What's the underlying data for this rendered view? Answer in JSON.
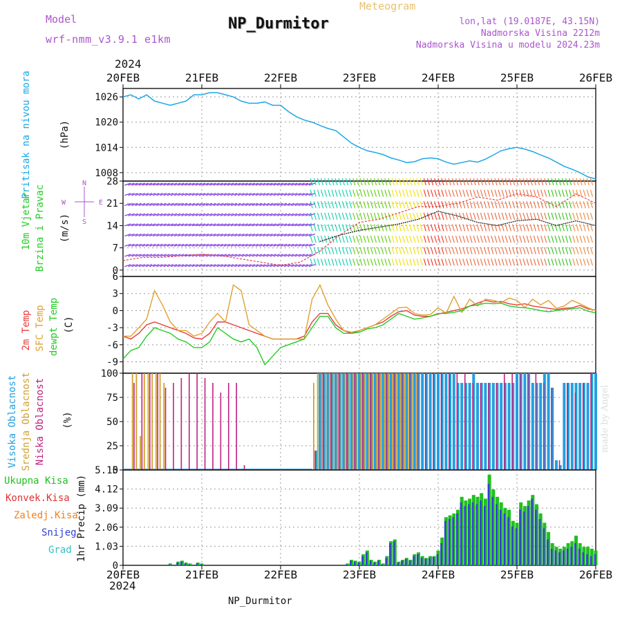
{
  "header": {
    "model_label": "Model",
    "model_name": "wrf-nmm_v3.9.1 e1km",
    "meteogram": "Meteogram",
    "title": "NP_Durmitor",
    "coords": "lon,lat (19.0187E, 43.15N)",
    "elevation": "Nadmorska Visina 2212m",
    "elevation_model": "Nadmorska Visina u modelu 2024.23m",
    "footer": "NP_Durmitor",
    "watermark": "made by Angel",
    "year_top": "2024",
    "year_bottom": "2024"
  },
  "colors": {
    "pressure": "#1aa7e6",
    "temp2m": "#e83a3a",
    "sfc": "#e0a030",
    "dew": "#22cc22",
    "high_cloud": "#22a0e0",
    "mid_cloud": "#d0a030",
    "low_cloud": "#c02080",
    "precip_total": "#20c020",
    "precip_conv": "#e03030",
    "precip_frz": "#f08020",
    "snow": "#3040d0",
    "graupel": "#30c0c0",
    "model_text": "#aa55cc"
  },
  "chart_data": [
    {
      "type": "line",
      "id": "pressure",
      "ylabel_main": "Pritisak na nivou mora",
      "ylabel_unit": "(hPa)",
      "x_ticks": [
        "20FEB",
        "21FEB",
        "22FEB",
        "23FEB",
        "24FEB",
        "25FEB",
        "26FEB"
      ],
      "yticks": [
        1008,
        1014,
        1020,
        1026
      ],
      "ylim": [
        1006,
        1028
      ],
      "x_days": [
        0,
        0.1,
        0.2,
        0.3,
        0.4,
        0.5,
        0.6,
        0.7,
        0.8,
        0.9,
        1,
        1.1,
        1.2,
        1.3,
        1.4,
        1.5,
        1.6,
        1.7,
        1.8,
        1.9,
        2,
        2.1,
        2.2,
        2.3,
        2.4,
        2.5,
        2.6,
        2.7,
        2.8,
        2.9,
        3,
        3.1,
        3.2,
        3.3,
        3.4,
        3.5,
        3.6,
        3.7,
        3.8,
        3.9,
        4,
        4.1,
        4.2,
        4.3,
        4.4,
        4.5,
        4.6,
        4.7,
        4.8,
        4.9,
        5,
        5.1,
        5.2,
        5.3,
        5.4,
        5.5,
        5.6,
        5.7,
        5.8,
        5.9,
        6
      ],
      "values": [
        1026,
        1026.5,
        1025.5,
        1026.5,
        1025,
        1024.5,
        1024,
        1024.5,
        1025,
        1026.5,
        1026.5,
        1027,
        1027,
        1026.5,
        1026,
        1025,
        1024.5,
        1024.5,
        1024.8,
        1024,
        1024,
        1022.5,
        1021.3,
        1020.5,
        1020,
        1019.2,
        1018.5,
        1018,
        1016.5,
        1015,
        1014,
        1013.2,
        1012.8,
        1012.3,
        1011.5,
        1011,
        1010.4,
        1010.6,
        1011.3,
        1011.5,
        1011.3,
        1010.5,
        1010,
        1010.4,
        1010.8,
        1010.5,
        1011.2,
        1012.2,
        1013.2,
        1013.7,
        1014,
        1013.6,
        1013,
        1012.2,
        1011.5,
        1010.5,
        1009.5,
        1008.8,
        1008,
        1007,
        1006.5
      ],
      "series_name": "Pritisak na nivou mora"
    },
    {
      "type": "barbs",
      "id": "wind",
      "ylabel_main": "10m Vjetar",
      "ylabel_sub": "Brzina i Pravac",
      "ylabel_unit": "(m/s)",
      "compass": [
        "N",
        "E",
        "W",
        "S"
      ],
      "yticks": [
        0,
        7,
        14,
        21,
        28
      ],
      "ylim": [
        -2,
        28
      ],
      "x_days": [
        0,
        0.25,
        0.5,
        0.75,
        1,
        1.25,
        1.5,
        1.75,
        2,
        2.25,
        2.5,
        2.75,
        3,
        3.25,
        3.5,
        3.75,
        4,
        4.25,
        4.5,
        4.75,
        5,
        5.25,
        5.5,
        5.75,
        6
      ],
      "speed_black": [
        null,
        null,
        null,
        null,
        null,
        null,
        null,
        null,
        null,
        null,
        9,
        11,
        12.5,
        13.5,
        14.5,
        16,
        18.5,
        17,
        15,
        14,
        15.5,
        16,
        14,
        15.5,
        14
      ],
      "speed_red": [
        3,
        4,
        4,
        4.5,
        5,
        4.5,
        3.5,
        2.5,
        1.5,
        2.5,
        6,
        11,
        15,
        16,
        18,
        20,
        20,
        21,
        23,
        22,
        24,
        23,
        20,
        24,
        21
      ]
    },
    {
      "type": "line",
      "id": "temperature",
      "ylabel_lines": [
        "2m Temp",
        "SFC Temp",
        "dewpt Temp"
      ],
      "ylabel_unit": "(C)",
      "yticks": [
        -9,
        -6,
        -3,
        0,
        3,
        6
      ],
      "ylim": [
        -11,
        6
      ],
      "x_days": [
        0,
        0.1,
        0.2,
        0.3,
        0.4,
        0.5,
        0.6,
        0.7,
        0.8,
        0.9,
        1,
        1.1,
        1.2,
        1.3,
        1.4,
        1.5,
        1.6,
        1.7,
        1.8,
        1.9,
        2,
        2.1,
        2.2,
        2.3,
        2.4,
        2.5,
        2.6,
        2.7,
        2.8,
        2.9,
        3,
        3.1,
        3.2,
        3.3,
        3.4,
        3.5,
        3.6,
        3.7,
        3.8,
        3.9,
        4,
        4.1,
        4.2,
        4.3,
        4.4,
        4.5,
        4.6,
        4.7,
        4.8,
        4.9,
        5,
        5.1,
        5.2,
        5.3,
        5.4,
        5.5,
        5.6,
        5.7,
        5.8,
        5.9,
        6
      ],
      "series": [
        {
          "name": "2m Temp",
          "values": [
            -4.5,
            -5,
            -4,
            -2.5,
            -2,
            -2.5,
            -3,
            -3.5,
            -4,
            -4.8,
            -5,
            -4,
            -2,
            -2,
            -2.5,
            -3,
            -3.5,
            -4,
            -4.5,
            -5,
            -5,
            -5,
            -5,
            -4.5,
            -2,
            -0.5,
            -0.5,
            -2.5,
            -3.5,
            -4,
            -3.5,
            -3,
            -2.5,
            -2,
            -1,
            -0.2,
            0,
            -0.8,
            -1,
            -1,
            -0.6,
            -0.3,
            0,
            0.3,
            0.8,
            1.3,
            1.8,
            1.5,
            1.6,
            1.2,
            1,
            1.2,
            0.8,
            0.6,
            0.4,
            0.2,
            0.4,
            0.5,
            0.9,
            0.3,
            0.1
          ]
        },
        {
          "name": "SFC Temp",
          "values": [
            -4.5,
            -4.5,
            -3,
            -1.5,
            3.5,
            1,
            -2,
            -3.5,
            -3.5,
            -4.5,
            -4,
            -2,
            -0.5,
            -2,
            4.5,
            3.5,
            -2.5,
            -3.5,
            -4.5,
            -5,
            -5,
            -5,
            -5,
            -5,
            2,
            4.5,
            1,
            -1.5,
            -3.5,
            -3.8,
            -3.5,
            -3,
            -2.5,
            -1.5,
            -0.5,
            0.5,
            0.6,
            -0.5,
            -0.8,
            -0.7,
            0.5,
            -0.5,
            2.5,
            -0.3,
            2,
            0.8,
            2,
            1.8,
            1.4,
            2.2,
            1.8,
            0.5,
            2,
            1,
            1.8,
            0.4,
            0.8,
            1.8,
            1.2,
            0.5,
            0
          ]
        },
        {
          "name": "dewpt Temp",
          "values": [
            -8.5,
            -7,
            -6.5,
            -4.5,
            -3,
            -3.5,
            -4,
            -5,
            -5.5,
            -6.5,
            -6.5,
            -5.5,
            -3,
            -4,
            -5,
            -5.5,
            -5,
            -6.5,
            -9.5,
            -8,
            -6.5,
            -6,
            -5.5,
            -5,
            -3,
            -1,
            -1,
            -3,
            -4,
            -4,
            -3.8,
            -3.2,
            -3,
            -2.5,
            -1.5,
            -0.5,
            -1,
            -1.5,
            -1.3,
            -1,
            -0.5,
            -0.5,
            -0.3,
            0,
            0.8,
            1,
            1.3,
            1.2,
            1.3,
            0.8,
            0.6,
            0.5,
            0.3,
            0,
            -0.2,
            0,
            0.2,
            0.3,
            0.5,
            -0.1,
            -0.4
          ]
        }
      ]
    },
    {
      "type": "bar",
      "id": "clouds",
      "ylabel_lines": [
        "Visoka Oblacnost",
        "Srednja Oblacnost",
        "Niska Oblacnost"
      ],
      "ylabel_unit": "(%)",
      "yticks": [
        0,
        25,
        50,
        75,
        100
      ],
      "ylim": [
        0,
        100
      ],
      "series": [
        {
          "name": "Visoka Oblacnost",
          "x_days": [
            2.45,
            2.5,
            2.55,
            2.6,
            2.65,
            2.7,
            2.75,
            2.8,
            2.85,
            2.9,
            2.95,
            3,
            3.05,
            3.1,
            3.15,
            3.2,
            3.25,
            3.3,
            3.35,
            3.4,
            3.45,
            3.5,
            3.55,
            3.6,
            3.65,
            3.7,
            3.75,
            3.8,
            3.85,
            3.9,
            3.95,
            4,
            4.05,
            4.1,
            4.15,
            4.2,
            4.25,
            4.3,
            4.35,
            4.4,
            4.45,
            4.5,
            4.55,
            4.6,
            4.65,
            4.7,
            4.75,
            4.8,
            4.85,
            4.9,
            4.95,
            5,
            5.05,
            5.1,
            5.15,
            5.2,
            5.25,
            5.3,
            5.35,
            5.4,
            5.45,
            5.5,
            5.55,
            5.6,
            5.65,
            5.7,
            5.75,
            5.8,
            5.85,
            5.9,
            5.95,
            6
          ],
          "values": [
            20,
            100,
            100,
            100,
            100,
            100,
            100,
            100,
            100,
            100,
            100,
            100,
            100,
            100,
            100,
            100,
            100,
            100,
            100,
            100,
            100,
            100,
            100,
            100,
            100,
            100,
            100,
            100,
            100,
            100,
            100,
            100,
            100,
            100,
            100,
            100,
            90,
            90,
            90,
            90,
            100,
            90,
            90,
            90,
            90,
            90,
            90,
            90,
            90,
            90,
            90,
            100,
            100,
            100,
            100,
            90,
            90,
            90,
            100,
            100,
            85,
            10,
            5,
            90,
            90,
            90,
            90,
            90,
            90,
            90,
            100,
            100
          ]
        },
        {
          "name": "Srednja Oblacnost",
          "x_days": [
            0.12,
            0.17,
            0.22,
            0.27,
            0.32,
            0.37,
            0.42,
            0.47,
            0.52,
            2.42,
            2.47,
            2.52,
            2.57,
            2.62,
            2.67,
            2.72,
            2.77,
            2.82,
            2.87,
            2.92,
            2.97,
            3.02,
            3.07,
            3.12,
            3.17,
            3.22,
            3.27,
            3.32,
            3.37,
            3.42,
            3.47,
            3.52,
            3.57,
            3.62,
            3.67,
            3.72
          ],
          "values": [
            100,
            100,
            35,
            100,
            100,
            100,
            100,
            100,
            90,
            90,
            100,
            100,
            100,
            100,
            100,
            100,
            100,
            100,
            100,
            100,
            100,
            100,
            100,
            100,
            100,
            100,
            100,
            100,
            100,
            100,
            100,
            100,
            100,
            100,
            100,
            100
          ]
        },
        {
          "name": "Niska Oblacnost",
          "x_days": [
            0.14,
            0.24,
            0.34,
            0.44,
            0.54,
            0.64,
            0.74,
            0.84,
            0.94,
            1.04,
            1.14,
            1.24,
            1.34,
            1.44,
            1.54,
            1.64,
            2.44,
            2.54,
            2.64,
            2.74,
            2.84,
            2.94,
            3.04,
            3.14,
            3.24,
            3.34,
            3.44,
            3.54,
            3.64,
            3.74,
            3.84,
            3.94,
            4.04,
            4.14,
            4.24,
            4.34,
            4.44,
            4.54,
            4.64,
            4.74,
            4.84,
            4.94,
            5.04,
            5.14,
            5.24,
            5.34,
            5.44,
            5.54,
            5.64,
            5.74,
            5.84,
            5.94
          ],
          "values": [
            90,
            100,
            100,
            100,
            85,
            90,
            95,
            100,
            100,
            95,
            90,
            80,
            90,
            90,
            5,
            0,
            20,
            100,
            100,
            100,
            100,
            100,
            100,
            100,
            100,
            100,
            100,
            100,
            100,
            100,
            100,
            100,
            100,
            100,
            100,
            100,
            90,
            90,
            90,
            90,
            100,
            100,
            100,
            100,
            100,
            90,
            85,
            10,
            90,
            80,
            90,
            100
          ]
        }
      ]
    },
    {
      "type": "bar",
      "id": "precip",
      "ylabel_lines": [
        "Ukupna Kisa",
        "Konvek.Kisa",
        "Zaledj.Kisa",
        "Snijeg",
        "Grad"
      ],
      "ylabel_unit": "1hr Precip (mm)",
      "yticks": [
        0,
        1.03,
        2.06,
        3.09,
        4.12,
        5.15
      ],
      "ylim": [
        0,
        5.15
      ],
      "x_days": [
        0.6,
        0.7,
        0.75,
        0.8,
        0.85,
        0.95,
        1.0,
        2.85,
        2.9,
        2.95,
        3.0,
        3.05,
        3.1,
        3.15,
        3.2,
        3.25,
        3.3,
        3.35,
        3.4,
        3.45,
        3.5,
        3.55,
        3.6,
        3.65,
        3.7,
        3.75,
        3.8,
        3.85,
        3.9,
        3.95,
        4.0,
        4.05,
        4.1,
        4.15,
        4.2,
        4.25,
        4.3,
        4.35,
        4.4,
        4.45,
        4.5,
        4.55,
        4.6,
        4.65,
        4.7,
        4.75,
        4.8,
        4.85,
        4.9,
        4.95,
        5.0,
        5.05,
        5.1,
        5.15,
        5.2,
        5.25,
        5.3,
        5.35,
        5.4,
        5.45,
        5.5,
        5.55,
        5.6,
        5.65,
        5.7,
        5.75,
        5.8,
        5.85,
        5.9,
        5.95,
        6.0
      ],
      "series": [
        {
          "name": "Ukupna Kisa",
          "values": [
            0.1,
            0.2,
            0.25,
            0.15,
            0.1,
            0.15,
            0.1,
            0.1,
            0.3,
            0.25,
            0.2,
            0.6,
            0.8,
            0.3,
            0.2,
            0.3,
            0.1,
            0.5,
            1.3,
            1.4,
            0.2,
            0.3,
            0.4,
            0.3,
            0.6,
            0.7,
            0.5,
            0.4,
            0.5,
            0.5,
            0.8,
            1.5,
            2.6,
            2.7,
            2.8,
            3.0,
            3.7,
            3.5,
            3.6,
            3.8,
            3.7,
            3.9,
            3.6,
            4.9,
            4.1,
            3.7,
            3.4,
            3.1,
            3.0,
            2.4,
            2.3,
            3.4,
            3.2,
            3.5,
            3.8,
            3.3,
            2.8,
            2.3,
            1.8,
            1.2,
            1.0,
            0.9,
            1.0,
            1.2,
            1.3,
            1.6,
            1.2,
            1.0,
            1.0,
            0.9,
            0.8
          ]
        },
        {
          "name": "Snijeg",
          "values": [
            0.05,
            0.15,
            0.2,
            0.1,
            0.05,
            0.1,
            0.05,
            0.05,
            0.25,
            0.2,
            0.15,
            0.5,
            0.7,
            0.25,
            0.15,
            0.25,
            0.05,
            0.4,
            1.2,
            1.3,
            0.15,
            0.25,
            0.35,
            0.25,
            0.5,
            0.6,
            0.4,
            0.35,
            0.4,
            0.45,
            0.6,
            1.2,
            2.4,
            2.5,
            2.6,
            2.8,
            3.4,
            3.2,
            3.3,
            3.4,
            3.3,
            3.5,
            3.2,
            4.4,
            3.7,
            3.3,
            3.0,
            2.8,
            2.6,
            2.1,
            2.0,
            3.0,
            2.9,
            3.2,
            3.6,
            3.0,
            2.5,
            2.0,
            1.4,
            0.9,
            0.8,
            0.7,
            0.8,
            0.9,
            1.0,
            1.2,
            0.9,
            0.7,
            0.6,
            0.5,
            0.6
          ]
        }
      ]
    }
  ]
}
